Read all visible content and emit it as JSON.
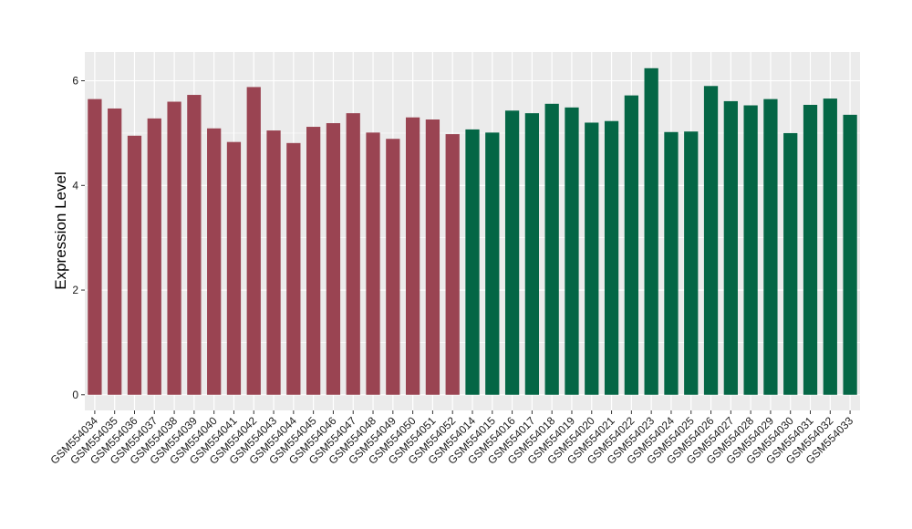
{
  "chart_data": {
    "type": "bar",
    "title": "",
    "xlabel": "",
    "ylabel": "Expression Level",
    "ylim": [
      -0.3,
      6.55
    ],
    "yticks": [
      0,
      2,
      4,
      6
    ],
    "grid": true,
    "legend": "none",
    "categories": [
      "GSM554034",
      "GSM554035",
      "GSM554036",
      "GSM554037",
      "GSM554038",
      "GSM554039",
      "GSM554040",
      "GSM554041",
      "GSM554042",
      "GSM554043",
      "GSM554044",
      "GSM554045",
      "GSM554046",
      "GSM554047",
      "GSM554048",
      "GSM554049",
      "GSM554050",
      "GSM554051",
      "GSM554052",
      "GSM554014",
      "GSM554015",
      "GSM554016",
      "GSM554017",
      "GSM554018",
      "GSM554019",
      "GSM554020",
      "GSM554021",
      "GSM554022",
      "GSM554023",
      "GSM554024",
      "GSM554025",
      "GSM554026",
      "GSM554027",
      "GSM554028",
      "GSM554029",
      "GSM554030",
      "GSM554031",
      "GSM554032",
      "GSM554033"
    ],
    "values": [
      5.65,
      5.47,
      4.95,
      5.28,
      5.6,
      5.73,
      5.09,
      4.83,
      5.88,
      5.05,
      4.81,
      5.12,
      5.19,
      5.38,
      5.01,
      4.89,
      5.3,
      5.26,
      4.98,
      5.07,
      5.01,
      5.43,
      5.38,
      5.56,
      5.49,
      5.2,
      5.23,
      5.72,
      6.24,
      5.02,
      5.03,
      5.9,
      5.61,
      5.53,
      5.65,
      5.0,
      5.54,
      5.66,
      5.35
    ],
    "groups": [
      0,
      0,
      0,
      0,
      0,
      0,
      0,
      0,
      0,
      0,
      0,
      0,
      0,
      0,
      0,
      0,
      0,
      0,
      0,
      1,
      1,
      1,
      1,
      1,
      1,
      1,
      1,
      1,
      1,
      1,
      1,
      1,
      1,
      1,
      1,
      1,
      1,
      1,
      1
    ],
    "colors": {
      "group0": "#9a4452",
      "group1": "#046645",
      "panel": "#ebebeb",
      "grid": "#ffffff"
    }
  }
}
